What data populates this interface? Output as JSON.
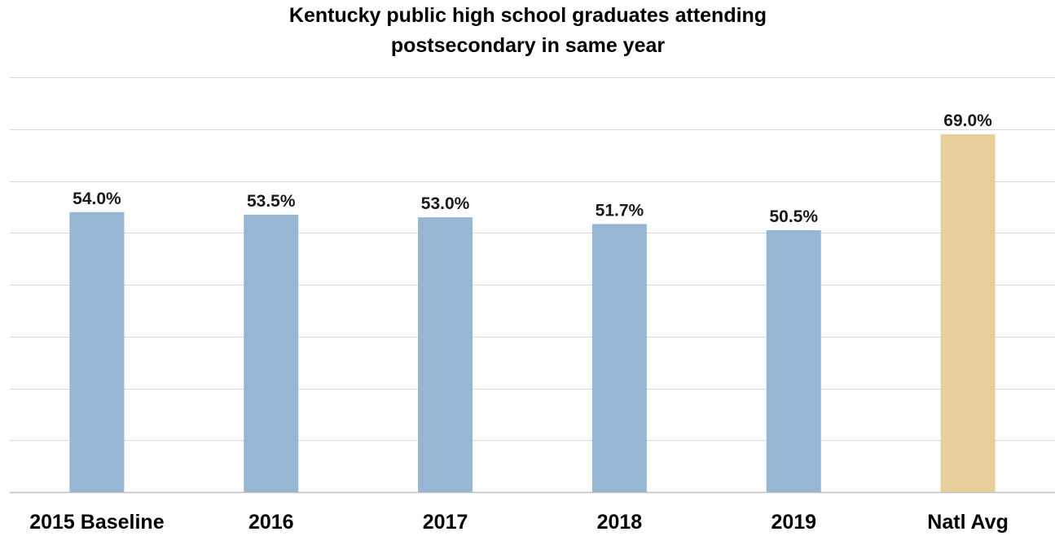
{
  "chart_data": {
    "type": "bar",
    "title_lines": [
      "Kentucky public high school graduates attending",
      "postsecondary in same year"
    ],
    "categories": [
      "2015 Baseline",
      "2016",
      "2017",
      "2018",
      "2019",
      "Natl Avg"
    ],
    "values": [
      54.0,
      53.5,
      53.0,
      51.7,
      50.5,
      69.0
    ],
    "value_labels": [
      "54.0%",
      "53.5%",
      "53.0%",
      "51.7%",
      "50.5%",
      "69.0%"
    ],
    "bar_colors": [
      "#97b6d3",
      "#97b6d3",
      "#97b6d3",
      "#97b6d3",
      "#97b6d3",
      "#e6cf9a"
    ],
    "gridline_color": "#d9d9d9",
    "axis_color": "#bfbfbf",
    "ylim": [
      0,
      80
    ],
    "y_gridlines": [
      0,
      10,
      20,
      30,
      40,
      50,
      60,
      70,
      80
    ],
    "grid": true,
    "legend": "none",
    "xlabel": "",
    "ylabel": ""
  }
}
